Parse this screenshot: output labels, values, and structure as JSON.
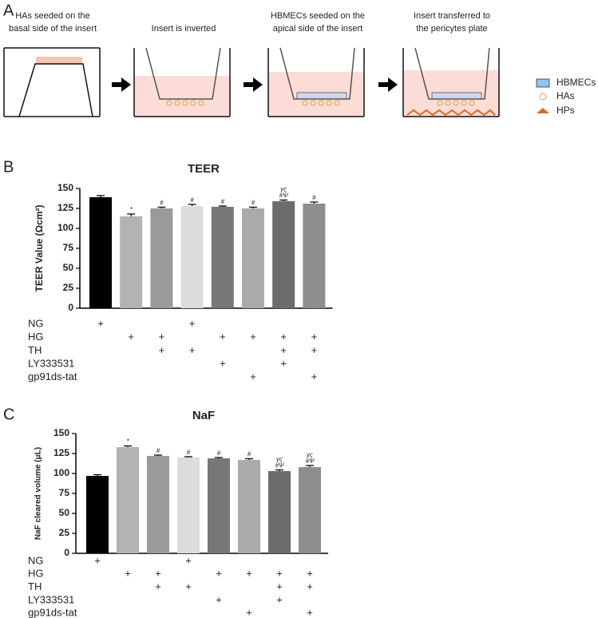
{
  "panel_labels": [
    "A",
    "B",
    "C"
  ],
  "diagram": {
    "steps": [
      [
        "HAs seeded on the",
        "basal side of the insert"
      ],
      [
        "Insert is inverted"
      ],
      [
        "HBMECs seeded on the",
        "apical side of the insert"
      ],
      [
        "Insert transferred to",
        "the pericytes plate"
      ]
    ],
    "legend": [
      "HBMECs",
      "HAs",
      "HPs"
    ]
  },
  "chart_data": [
    {
      "type": "bar",
      "title": "TEER",
      "y_label": "TEER Value (Ωcm²)",
      "values": [
        139,
        115,
        125,
        128,
        127,
        125,
        134,
        131
      ],
      "errors": [
        2,
        3,
        1.5,
        2,
        1,
        1.5,
        1.5,
        2
      ],
      "colors": [
        "#000000",
        "#b3b3b3",
        "#9a9a9a",
        "#dcdcdc",
        "#777777",
        "#ababab",
        "#6c6c6c",
        "#8e8e8e"
      ],
      "annotations": [
        null,
        [
          "*"
        ],
        [
          "#"
        ],
        [
          "#"
        ],
        [
          "#"
        ],
        [
          "#"
        ],
        [
          "#Ψ",
          "γς"
        ],
        [
          "#"
        ]
      ],
      "ylim": [
        0,
        150
      ],
      "yticks": [
        0,
        25,
        50,
        75,
        100,
        125,
        150
      ],
      "treatments": [
        {
          "name": "NG",
          "marks": [
            "+",
            null,
            null,
            "+",
            null,
            null,
            null,
            null
          ]
        },
        {
          "name": "HG",
          "marks": [
            null,
            "+",
            "+",
            null,
            "+",
            "+",
            "+",
            "+"
          ]
        },
        {
          "name": "TH",
          "marks": [
            null,
            null,
            "+",
            "+",
            null,
            null,
            "+",
            "+"
          ]
        },
        {
          "name": "LY333531",
          "marks": [
            null,
            null,
            null,
            null,
            "+",
            null,
            "+",
            null
          ]
        },
        {
          "name": "gp91ds-tat",
          "marks": [
            null,
            null,
            null,
            null,
            null,
            "+",
            null,
            "+"
          ]
        }
      ]
    },
    {
      "type": "bar",
      "title": "NaF",
      "y_label": "NaF cleared volume (μL)",
      "values": [
        97,
        133,
        122,
        120,
        119,
        117,
        103,
        108
      ],
      "errors": [
        1.5,
        1.5,
        1,
        1,
        1,
        1.5,
        1.5,
        2
      ],
      "colors": [
        "#000000",
        "#b3b3b3",
        "#9a9a9a",
        "#dcdcdc",
        "#777777",
        "#ababab",
        "#6c6c6c",
        "#8e8e8e"
      ],
      "annotations": [
        null,
        [
          "*"
        ],
        [
          "#"
        ],
        [
          "#"
        ],
        [
          "#"
        ],
        [
          "#"
        ],
        [
          "#Ψ",
          "γς"
        ],
        [
          "#Ψ",
          "γς"
        ]
      ],
      "ylim": [
        0,
        150
      ],
      "yticks": [
        0,
        25,
        50,
        75,
        100,
        125,
        150
      ],
      "treatments": [
        {
          "name": "NG",
          "marks": [
            "+",
            null,
            null,
            "+",
            null,
            null,
            null,
            null
          ]
        },
        {
          "name": "HG",
          "marks": [
            null,
            "+",
            "+",
            null,
            "+",
            "+",
            "+",
            "+"
          ]
        },
        {
          "name": "TH",
          "marks": [
            null,
            null,
            "+",
            "+",
            null,
            null,
            "+",
            "+"
          ]
        },
        {
          "name": "LY333531",
          "marks": [
            null,
            null,
            null,
            null,
            "+",
            null,
            "+",
            null
          ]
        },
        {
          "name": "gp91ds-tat",
          "marks": [
            null,
            null,
            null,
            null,
            null,
            "+",
            null,
            "+"
          ]
        }
      ]
    }
  ]
}
